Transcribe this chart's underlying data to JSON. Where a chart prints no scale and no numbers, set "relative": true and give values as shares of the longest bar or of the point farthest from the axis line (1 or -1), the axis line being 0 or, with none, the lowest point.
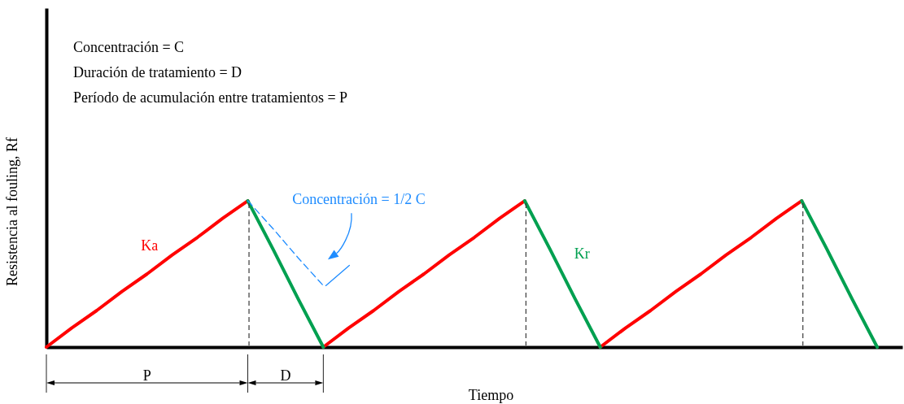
{
  "chart_data": {
    "type": "line",
    "relative": true,
    "xlabel": "Tiempo",
    "ylabel": "Resistencia al fouling, Rf",
    "categories": [
      null,
      null,
      null,
      null,
      null,
      null,
      null,
      null,
      null,
      null,
      null,
      null,
      null,
      null,
      null,
      null,
      null,
      null,
      null,
      null,
      null,
      null,
      null,
      null,
      null,
      null,
      null,
      null,
      null,
      null,
      null,
      null,
      null,
      null,
      null
    ],
    "series": [
      {
        "name": "Ka",
        "color": "#ff0000",
        "values": [
          0,
          0.13,
          0.25,
          0.38,
          0.5,
          0.63,
          0.75,
          0.88,
          1,
          null,
          null,
          0,
          0.13,
          0.25,
          0.38,
          0.5,
          0.63,
          0.75,
          0.88,
          1,
          null,
          null,
          0,
          0.13,
          0.25,
          0.38,
          0.5,
          0.63,
          0.75,
          0.88,
          1,
          null,
          null,
          null,
          null
        ]
      },
      {
        "name": "Kr",
        "color": "#00a050",
        "values": [
          null,
          null,
          null,
          null,
          null,
          null,
          null,
          null,
          1,
          0.67,
          0.33,
          0,
          null,
          null,
          null,
          null,
          null,
          null,
          null,
          1,
          0.67,
          0.33,
          0,
          null,
          null,
          null,
          null,
          null,
          null,
          null,
          1,
          0.67,
          0.33,
          0,
          null
        ]
      },
      {
        "name": "Concentración = 1/2 C",
        "color": "#1e8cff",
        "line_style": "dashed",
        "values": [
          null,
          null,
          null,
          null,
          null,
          null,
          null,
          null,
          1,
          0.81,
          0.61,
          0.42,
          null,
          null,
          null,
          null,
          null,
          null,
          null,
          null,
          null,
          null,
          null,
          null,
          null,
          null,
          null,
          null,
          null,
          null,
          null,
          null,
          null,
          null,
          null
        ]
      }
    ],
    "annotations": [
      "Concentración = C",
      "Duración de tratamiento = D",
      "Período de acumulación entre tratamientos = P",
      "P",
      "D"
    ],
    "grid": "x",
    "tick_labels": false,
    "line_style": "solid"
  }
}
